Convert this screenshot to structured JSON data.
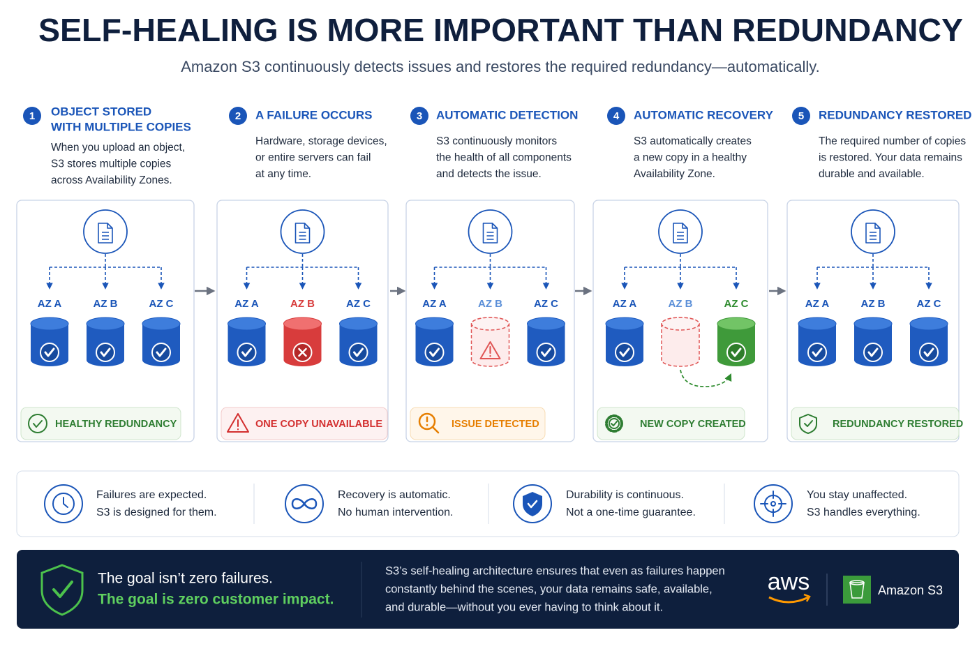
{
  "header": {
    "title": "SELF-HEALING IS MORE IMPORTANT THAN REDUNDANCY",
    "subtitle": "Amazon S3 continuously detects issues and restores the required redundancy—automatically."
  },
  "steps": [
    {
      "number": "1",
      "title": [
        "OBJECT STORED",
        "WITH MULTIPLE COPIES"
      ],
      "description": [
        "When you upload an object,",
        "S3 stores multiple copies",
        "across Availability Zones."
      ],
      "zones": [
        {
          "label": "AZ A",
          "state": "ok"
        },
        {
          "label": "AZ B",
          "state": "ok"
        },
        {
          "label": "AZ C",
          "state": "ok"
        }
      ],
      "badge": {
        "text": "HEALTHY REDUNDANCY",
        "color": "#2e7d32"
      }
    },
    {
      "number": "2",
      "title": [
        "A FAILURE OCCURS"
      ],
      "description": [
        "Hardware, storage devices,",
        "or entire servers can fail",
        "at any time."
      ],
      "zones": [
        {
          "label": "AZ A",
          "state": "ok"
        },
        {
          "label": "AZ B",
          "state": "failed"
        },
        {
          "label": "AZ C",
          "state": "ok"
        }
      ],
      "badge": {
        "text": "ONE COPY UNAVAILABLE",
        "color": "#d32f2f"
      }
    },
    {
      "number": "3",
      "title": [
        "AUTOMATIC DETECTION"
      ],
      "description": [
        "S3 continuously monitors",
        "the health of all components",
        "and detects the issue."
      ],
      "zones": [
        {
          "label": "AZ A",
          "state": "ok"
        },
        {
          "label": "AZ B",
          "state": "suspect"
        },
        {
          "label": "AZ C",
          "state": "ok"
        }
      ],
      "badge": {
        "text": "ISSUE DETECTED",
        "color": "#e67e00"
      }
    },
    {
      "number": "4",
      "title": [
        "AUTOMATIC RECOVERY"
      ],
      "description": [
        "S3 automatically creates",
        "a new copy in a healthy",
        "Availability Zone."
      ],
      "zones": [
        {
          "label": "AZ A",
          "state": "ok"
        },
        {
          "label": "AZ B",
          "state": "missing"
        },
        {
          "label": "AZ C",
          "state": "new"
        }
      ],
      "badge": {
        "text": "NEW COPY CREATED",
        "color": "#2e7d32"
      }
    },
    {
      "number": "5",
      "title": [
        "REDUNDANCY RESTORED"
      ],
      "description": [
        "The required number of copies",
        "is restored. Your data remains",
        "durable and available."
      ],
      "zones": [
        {
          "label": "AZ A",
          "state": "ok"
        },
        {
          "label": "AZ B",
          "state": "ok"
        },
        {
          "label": "AZ C",
          "state": "ok"
        }
      ],
      "badge": {
        "text": "REDUNDANCY RESTORED",
        "color": "#2e7d32"
      }
    }
  ],
  "principles": [
    {
      "lines": [
        "Failures are expected.",
        "S3 is designed for them."
      ]
    },
    {
      "lines": [
        "Recovery is automatic.",
        "No human intervention."
      ]
    },
    {
      "lines": [
        "Durability is continuous.",
        "Not a one-time guarantee."
      ]
    },
    {
      "lines": [
        "You stay unaffected.",
        "S3 handles everything."
      ]
    }
  ],
  "footer": {
    "headline": [
      "The goal isn’t zero failures.",
      "The goal is zero customer impact."
    ],
    "body": [
      "S3’s self-healing architecture ensures that even as failures happen",
      "constantly behind the scenes, your data remains safe, available,",
      "and durable—without you ever having to think about it."
    ],
    "logo": "aws",
    "product": "Amazon S3"
  }
}
